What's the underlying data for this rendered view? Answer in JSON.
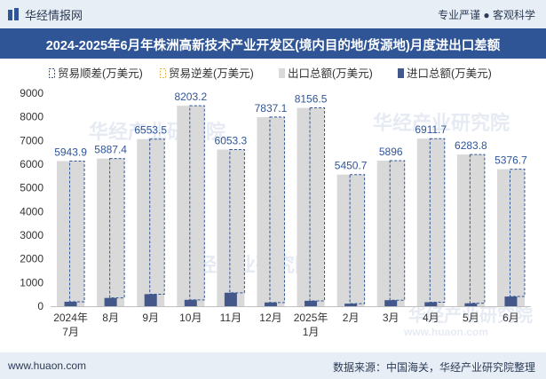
{
  "header": {
    "brand": "华经情报网",
    "tagline": "专业严谨 ● 客观科学"
  },
  "title": "2024-2025年6月年株洲高新技术产业开发区(境内目的地/货源地)月度进出口差额",
  "footer": {
    "url": "www.huaon.com",
    "source": "数据来源：中国海关，华经产业研究院整理"
  },
  "watermark": {
    "text": "华经产业研究院",
    "url": "www.huaon.com"
  },
  "colors": {
    "background_bar": "#e8eef6",
    "title_bar": "#2f5597",
    "export_total": "#d9d9d9",
    "import_total": "#44578a",
    "balance_outline": "#2f5597"
  },
  "chart_data": {
    "type": "bar",
    "categories": [
      "2024年\n7月",
      "8月",
      "9月",
      "10月",
      "11月",
      "12月",
      "2025年\n1月",
      "2月",
      "3月",
      "4月",
      "5月",
      "6月"
    ],
    "series": [
      {
        "name": "贸易顺差(万美元)",
        "values": [
          5943.9,
          5887.4,
          6553.5,
          8203.2,
          6053.3,
          7837.1,
          8156.5,
          5450.7,
          5896,
          6911.7,
          6283.8,
          5376.7
        ]
      },
      {
        "name": "贸易逆差(万美元)",
        "values": [
          0,
          0,
          0,
          0,
          0,
          0,
          0,
          0,
          0,
          0,
          0,
          0
        ]
      },
      {
        "name": "出口总额(万美元)",
        "values": [
          6130,
          6240,
          7060,
          8470,
          6620,
          7990,
          8380,
          5560,
          6150,
          7080,
          6410,
          5790
        ]
      },
      {
        "name": "进口总额(万美元)",
        "values": [
          190,
          350,
          510,
          270,
          570,
          160,
          230,
          110,
          255,
          170,
          125,
          410
        ]
      }
    ],
    "data_labels": [
      "5943.9",
      "5887.4",
      "6553.5",
      "8203.2",
      "6053.3",
      "7837.1",
      "8156.5",
      "5450.7",
      "5896",
      "6911.7",
      "6283.8",
      "5376.7"
    ],
    "ylim": [
      0,
      9000
    ],
    "yticks": [
      0,
      1000,
      2000,
      3000,
      4000,
      5000,
      6000,
      7000,
      8000,
      9000
    ],
    "xlabel": "",
    "ylabel": "",
    "grid": false,
    "legend_position": "top"
  }
}
